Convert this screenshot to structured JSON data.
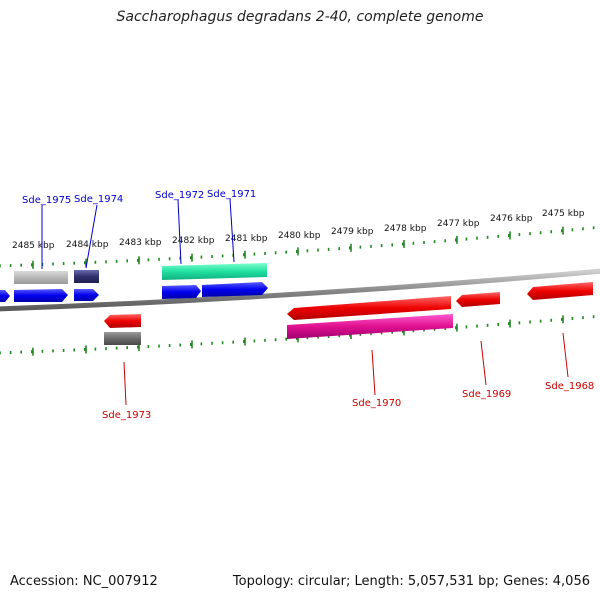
{
  "title": "Saccharophagus degradans 2-40, complete genome",
  "footer": {
    "accession": "Accession: NC_007912",
    "summary": "Topology: circular; Length: 5,057,531 bp; Genes: 4,056"
  },
  "scale_labels": [
    "2485 kbp",
    "2484 kbp",
    "2483 kbp",
    "2482 kbp",
    "2481 kbp",
    "2480 kbp",
    "2479 kbp",
    "2478 kbp",
    "2477 kbp",
    "2476 kbp",
    "2475 kbp"
  ],
  "gene_labels": [
    {
      "text": "Sde_1975",
      "color": "#0000cc"
    },
    {
      "text": "Sde_1974",
      "color": "#0000cc"
    },
    {
      "text": "Sde_1972",
      "color": "#0000cc"
    },
    {
      "text": "Sde_1971",
      "color": "#0000cc"
    },
    {
      "text": "Sde_1973",
      "color": "#cc0000"
    },
    {
      "text": "Sde_1970",
      "color": "#cc0000"
    },
    {
      "text": "Sde_1969",
      "color": "#cc0000"
    },
    {
      "text": "Sde_1968",
      "color": "#cc0000"
    }
  ],
  "colors": {
    "forward_gene": "#0000ee",
    "reverse_gene": "#ee0000",
    "backbone": "#888888",
    "ticks": "#228822"
  }
}
